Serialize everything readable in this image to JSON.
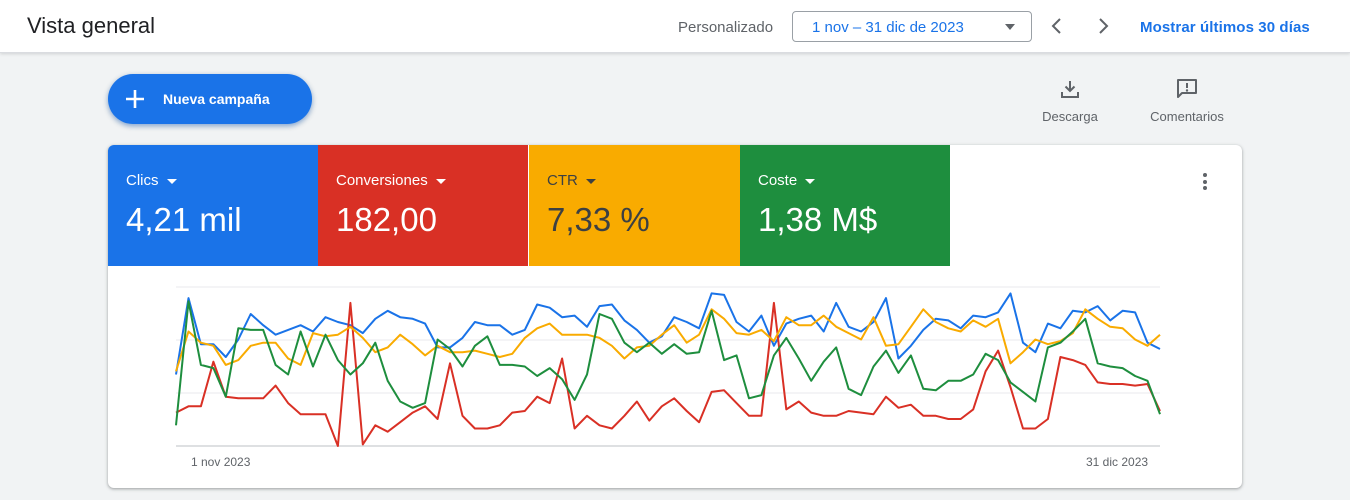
{
  "header": {
    "title": "Vista general",
    "range_label": "Personalizado",
    "date_range": "1 nov – 31 dic de 2023",
    "last_30_label": "Mostrar últimos 30 días"
  },
  "actions": {
    "new_campaign": "Nueva campaña",
    "download": "Descarga",
    "comments": "Comentarios"
  },
  "metrics": [
    {
      "name": "Clics",
      "value": "4,21 mil",
      "color": "#1a73e8"
    },
    {
      "name": "Conversiones",
      "value": "182,00",
      "color": "#d93025"
    },
    {
      "name": "CTR",
      "value": "7,33 %",
      "color": "#f9ab00"
    },
    {
      "name": "Coste",
      "value": "1,38 M$",
      "color": "#1e8e3e"
    }
  ],
  "chart_data": {
    "type": "line",
    "x_labels": [
      "1 nov 2023",
      "31 dic 2023"
    ],
    "grid": true,
    "series": [
      {
        "name": "Clics",
        "color": "#1a73e8",
        "values": [
          45,
          93,
          64,
          64,
          56,
          67,
          83,
          76,
          70,
          73,
          76,
          72,
          81,
          78,
          76,
          71,
          80,
          85,
          81,
          80,
          77,
          62,
          62,
          68,
          78,
          76,
          76,
          70,
          73,
          89,
          87,
          81,
          82,
          75,
          88,
          89,
          79,
          73,
          65,
          69,
          81,
          78,
          74,
          96,
          95,
          78,
          72,
          82,
          63,
          77,
          80,
          82,
          72,
          90,
          75,
          72,
          78,
          93,
          55,
          63,
          73,
          80,
          79,
          74,
          82,
          81,
          84,
          96,
          65,
          59,
          77,
          74,
          85,
          84,
          88,
          79,
          85,
          84,
          65,
          61
        ]
      },
      {
        "name": "Conversiones",
        "color": "#d93025",
        "values": [
          21,
          25,
          25,
          53,
          31,
          30,
          30,
          30,
          38,
          27,
          20,
          20,
          20,
          0,
          90,
          1,
          13,
          9,
          15,
          21,
          25,
          17,
          52,
          19,
          11,
          11,
          13,
          21,
          22,
          31,
          27,
          55,
          11,
          19,
          13,
          11,
          19,
          28,
          16,
          25,
          30,
          22,
          15,
          34,
          35,
          27,
          19,
          19,
          90,
          23,
          28,
          21,
          19,
          19,
          22,
          21,
          20,
          31,
          24,
          26,
          19,
          19,
          17,
          17,
          23,
          47,
          60,
          37,
          11,
          11,
          17,
          56,
          54,
          51,
          40,
          39,
          39,
          38,
          39,
          22
        ]
      },
      {
        "name": "CTR",
        "color": "#f9ab00",
        "values": [
          47,
          72,
          65,
          63,
          51,
          54,
          63,
          65,
          65,
          55,
          51,
          71,
          69,
          70,
          75,
          68,
          59,
          62,
          70,
          64,
          57,
          63,
          59,
          59,
          60,
          58,
          56,
          58,
          68,
          74,
          77,
          70,
          70,
          70,
          68,
          63,
          55,
          62,
          63,
          70,
          76,
          65,
          70,
          86,
          80,
          71,
          70,
          73,
          66,
          81,
          76,
          76,
          82,
          75,
          71,
          67,
          81,
          63,
          64,
          75,
          86,
          78,
          74,
          72,
          79,
          75,
          80,
          52,
          59,
          67,
          64,
          66,
          71,
          86,
          80,
          75,
          74,
          67,
          63,
          70
        ]
      },
      {
        "name": "Coste",
        "color": "#1e8e3e",
        "values": [
          13,
          91,
          51,
          49,
          31,
          74,
          73,
          73,
          51,
          45,
          72,
          50,
          70,
          54,
          45,
          52,
          65,
          41,
          28,
          24,
          27,
          67,
          61,
          50,
          63,
          69,
          51,
          51,
          50,
          44,
          49,
          42,
          29,
          45,
          83,
          80,
          65,
          59,
          65,
          58,
          64,
          58,
          59,
          85,
          54,
          57,
          30,
          32,
          57,
          68,
          55,
          41,
          53,
          62,
          36,
          32,
          50,
          60,
          46,
          57,
          36,
          35,
          41,
          41,
          45,
          58,
          54,
          40,
          34,
          28,
          62,
          65,
          72,
          80,
          52,
          50,
          49,
          44,
          41,
          20
        ]
      }
    ],
    "ylim": [
      0,
      100
    ]
  }
}
